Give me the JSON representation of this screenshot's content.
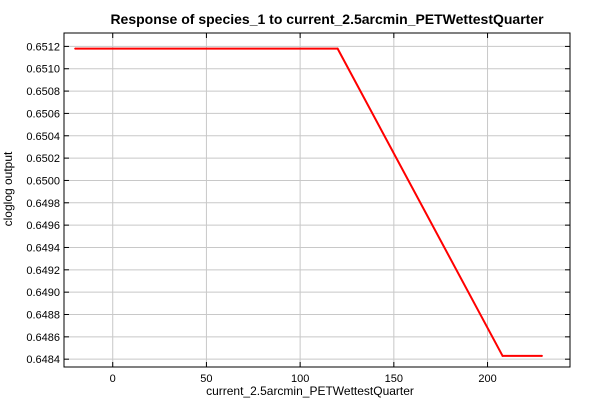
{
  "chart_data": {
    "type": "line",
    "title": "Response of species_1 to current_2.5arcmin_PETWettestQuarter",
    "xlabel": "current_2.5arcmin_PETWettestQuarter",
    "ylabel": "cloglog output",
    "xlim": [
      -26,
      244
    ],
    "ylim": [
      0.64833,
      0.65132
    ],
    "xticks": [
      0,
      50,
      100,
      150,
      200
    ],
    "xtick_labels": [
      "0",
      "50",
      "100",
      "150",
      "200"
    ],
    "yticks": [
      0.6484,
      0.6486,
      0.6488,
      0.649,
      0.6492,
      0.6494,
      0.6496,
      0.6498,
      0.65,
      0.6502,
      0.6504,
      0.6506,
      0.6508,
      0.651,
      0.6512
    ],
    "ytick_labels": [
      "0.6484",
      "0.6486",
      "0.6488",
      "0.6490",
      "0.6492",
      "0.6494",
      "0.6496",
      "0.6498",
      "0.6500",
      "0.6502",
      "0.6504",
      "0.6506",
      "0.6508",
      "0.6510",
      "0.6512"
    ],
    "grid": true,
    "series": [
      {
        "color": "#ff0000",
        "x": [
          -20,
          120,
          208,
          229
        ],
        "y": [
          0.65118,
          0.65118,
          0.64843,
          0.64843
        ]
      }
    ]
  }
}
